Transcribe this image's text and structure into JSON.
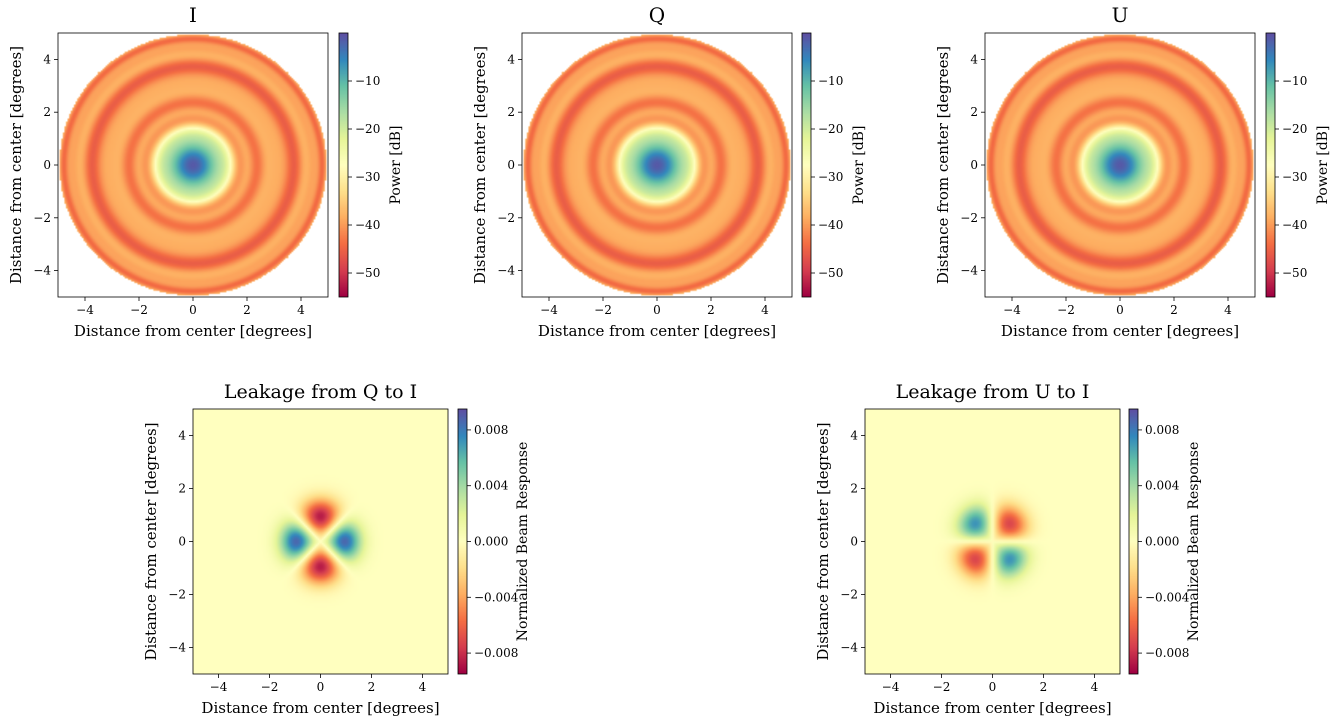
{
  "chart_data": [
    {
      "type": "heatmap",
      "title": "I",
      "xlabel": "Distance from center [degrees]",
      "ylabel": "Distance from center [degrees]",
      "xlim": [
        -5,
        5
      ],
      "ylim": [
        -5,
        5
      ],
      "xticks": [
        "−4",
        "−2",
        "0",
        "2",
        "4"
      ],
      "yticks": [
        "−4",
        "−2",
        "0",
        "2",
        "4"
      ],
      "colorbar": {
        "label": "Power [dB]",
        "range": [
          -55,
          0
        ],
        "ticks": [
          "−10",
          "−20",
          "−30",
          "−40",
          "−50"
        ],
        "cmap": "Spectral"
      },
      "pattern": "beam",
      "beam_center_db": -1,
      "rings_deg": [
        2.0,
        2.55,
        4.4
      ]
    },
    {
      "type": "heatmap",
      "title": "Q",
      "xlabel": "Distance from center [degrees]",
      "ylabel": "Distance from center [degrees]",
      "xlim": [
        -5,
        5
      ],
      "ylim": [
        -5,
        5
      ],
      "xticks": [
        "−4",
        "−2",
        "0",
        "2",
        "4"
      ],
      "yticks": [
        "−4",
        "−2",
        "0",
        "2",
        "4"
      ],
      "colorbar": {
        "label": "Power [dB]",
        "range": [
          -55,
          0
        ],
        "ticks": [
          "−10",
          "−20",
          "−30",
          "−40",
          "−50"
        ],
        "cmap": "Spectral"
      },
      "pattern": "beam",
      "beam_center_db": -1,
      "rings_deg": [
        2.0,
        2.55,
        4.4
      ]
    },
    {
      "type": "heatmap",
      "title": "U",
      "xlabel": "Distance from center [degrees]",
      "ylabel": "Distance from center [degrees]",
      "xlim": [
        -5,
        5
      ],
      "ylim": [
        -5,
        5
      ],
      "xticks": [
        "−4",
        "−2",
        "0",
        "2",
        "4"
      ],
      "yticks": [
        "−4",
        "−2",
        "0",
        "2",
        "4"
      ],
      "colorbar": {
        "label": "Power [dB]",
        "range": [
          -55,
          0
        ],
        "ticks": [
          "−10",
          "−20",
          "−30",
          "−40",
          "−50"
        ],
        "cmap": "Spectral"
      },
      "pattern": "beam",
      "beam_center_db": -1,
      "rings_deg": [
        2.0,
        2.55,
        4.4
      ]
    },
    {
      "type": "heatmap",
      "title": "Leakage from Q to I",
      "xlabel": "Distance from center [degrees]",
      "ylabel": "Distance from center [degrees]",
      "xlim": [
        -5,
        5
      ],
      "ylim": [
        -5,
        5
      ],
      "xticks": [
        "−4",
        "−2",
        "0",
        "2",
        "4"
      ],
      "yticks": [
        "−4",
        "−2",
        "0",
        "2",
        "4"
      ],
      "colorbar": {
        "label": "Normalized Beam Response",
        "range": [
          -0.0095,
          0.0095
        ],
        "ticks": [
          "0.008",
          "0.004",
          "0.000",
          "−0.004",
          "−0.008"
        ],
        "cmap": "Spectral"
      },
      "pattern": "quadrupole_plus",
      "peak_value": 0.009
    },
    {
      "type": "heatmap",
      "title": "Leakage from U to I",
      "xlabel": "Distance from center [degrees]",
      "ylabel": "Distance from center [degrees]",
      "xlim": [
        -5,
        5
      ],
      "ylim": [
        -5,
        5
      ],
      "xticks": [
        "−4",
        "−2",
        "0",
        "2",
        "4"
      ],
      "yticks": [
        "−4",
        "−2",
        "0",
        "2",
        "4"
      ],
      "colorbar": {
        "label": "Normalized Beam Response",
        "range": [
          -0.0095,
          0.0095
        ],
        "ticks": [
          "0.008",
          "0.004",
          "0.000",
          "−0.004",
          "−0.008"
        ],
        "cmap": "Spectral"
      },
      "pattern": "quadrupole_x",
      "peak_value": 0.0075
    }
  ]
}
